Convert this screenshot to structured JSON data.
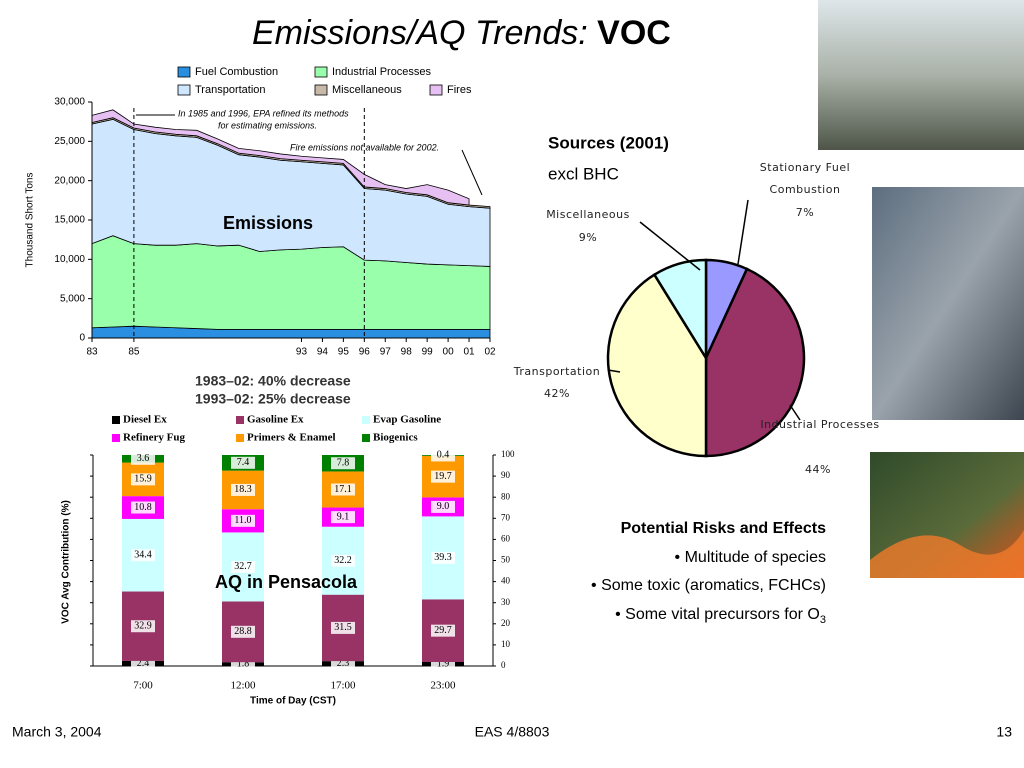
{
  "slide": {
    "title": "Emissions/AQ Trends: ",
    "title_bold": "VOC",
    "risks": {
      "heading": "Potential Risks and Effects",
      "items": [
        "• Multitude of species",
        "• Some toxic (aromatics, FCHCs)",
        "• Some vital precursors for O"
      ],
      "subscript": "3"
    },
    "footer": {
      "date": "March 3, 2004",
      "course": "EAS 4/8803",
      "page": "13"
    }
  },
  "chart_data": [
    {
      "type": "area",
      "stacked": true,
      "ylabel": "Thousand Short Tons",
      "label": "Emissions",
      "annotations": [
        "In 1985 and 1996, EPA refined its methods",
        "for estimating emissions.",
        "Fire emissions not available for 2002."
      ],
      "summary": [
        "1983–02:   40% decrease",
        "1993–02:   25% decrease"
      ],
      "x": [
        1983,
        1984,
        1985,
        1986,
        1987,
        1988,
        1989,
        1990,
        1991,
        1992,
        1993,
        1994,
        1995,
        1996,
        1997,
        1998,
        1999,
        2000,
        2001,
        2002
      ],
      "xlim": [
        1983,
        2002
      ],
      "xticks": [
        {
          "value": 1983,
          "label": "83"
        },
        {
          "value": 1985,
          "label": "85"
        },
        {
          "value": 1993,
          "label": "93"
        },
        {
          "value": 1994,
          "label": "94"
        },
        {
          "value": 1995,
          "label": "95"
        },
        {
          "value": 1996,
          "label": "96"
        },
        {
          "value": 1997,
          "label": "97"
        },
        {
          "value": 1998,
          "label": "98"
        },
        {
          "value": 1999,
          "label": "99"
        },
        {
          "value": 2000,
          "label": "00"
        },
        {
          "value": 2001,
          "label": "01"
        },
        {
          "value": 2002,
          "label": "02"
        }
      ],
      "ylim": [
        0,
        30000
      ],
      "yticks": [
        0,
        {
          "value": 5000,
          "label": "5,000"
        },
        {
          "value": 10000,
          "label": "10,000"
        },
        {
          "value": 15000,
          "label": "15,000"
        },
        {
          "value": 20000,
          "label": "20,000"
        },
        {
          "value": 25000,
          "label": "25,000"
        },
        {
          "value": 30000,
          "label": "30,000"
        }
      ],
      "series": [
        {
          "name": "Fuel Combustion",
          "color": "#2a8fe0",
          "values": [
            1300,
            1400,
            1500,
            1400,
            1300,
            1200,
            1100,
            1100,
            1100,
            1100,
            1100,
            1100,
            1100,
            1100,
            1100,
            1100,
            1100,
            1100,
            1100,
            1100
          ]
        },
        {
          "name": "Industrial Processes",
          "color": "#99ffaa",
          "values": [
            10700,
            11600,
            10500,
            10400,
            10500,
            10800,
            10600,
            10700,
            9900,
            10100,
            10200,
            10400,
            10500,
            8800,
            8700,
            8500,
            8300,
            8200,
            8100,
            8000
          ]
        },
        {
          "name": "Transportation",
          "color": "#cfe6ff",
          "values": [
            15200,
            14800,
            14500,
            14200,
            13900,
            13500,
            12800,
            11500,
            12000,
            11400,
            11100,
            10700,
            10400,
            9100,
            9000,
            8700,
            8600,
            7700,
            7500,
            7400
          ]
        },
        {
          "name": "Miscellaneous",
          "color": "#c8b8a8",
          "values": [
            200,
            200,
            200,
            200,
            200,
            200,
            200,
            200,
            200,
            200,
            200,
            200,
            200,
            200,
            200,
            200,
            200,
            200,
            200,
            200
          ]
        },
        {
          "name": "Fires",
          "color": "#e6c0f2",
          "values": [
            900,
            1000,
            500,
            600,
            600,
            700,
            600,
            600,
            600,
            600,
            500,
            500,
            500,
            1600,
            500,
            500,
            1300,
            1600,
            800,
            null
          ]
        }
      ]
    },
    {
      "type": "pie",
      "title": "Sources (2001)",
      "subtitle": "excl BHC",
      "categories": [
        "Stationary Fuel Combustion",
        "Industrial Processes",
        "Transportation",
        "Miscellaneous"
      ],
      "values": [
        7,
        44,
        42,
        9
      ],
      "value_labels": [
        "7%",
        "44%",
        "42%",
        "9%"
      ],
      "colors": [
        "#9999ff",
        "#993366",
        "#ffffcc",
        "#ccffff"
      ]
    },
    {
      "type": "bar",
      "stacked": true,
      "label": "AQ in Pensacola",
      "xlabel": "Time of Day  (CST)",
      "ylabel": "VOC Avg Contribution (%)",
      "categories": [
        "7:00",
        "12:00",
        "17:00",
        "23:00"
      ],
      "ylim": [
        0,
        100
      ],
      "yticks": [
        0,
        10,
        20,
        30,
        40,
        50,
        60,
        70,
        80,
        90,
        100
      ],
      "series": [
        {
          "name": "Diesel Ex",
          "color": "#000000",
          "values": [
            2.4,
            1.8,
            2.3,
            1.9
          ]
        },
        {
          "name": "Gasoline Ex",
          "color": "#993366",
          "values": [
            32.9,
            28.8,
            31.5,
            29.7
          ]
        },
        {
          "name": "Evap Gasoline",
          "color": "#ccffff",
          "values": [
            34.4,
            32.7,
            32.2,
            39.3
          ]
        },
        {
          "name": "Refinery Fug",
          "color": "#ff00ff",
          "values": [
            10.8,
            11.0,
            9.1,
            9.0
          ],
          "value_labels": [
            "10.8",
            "11.0",
            "9.1",
            "9.0"
          ]
        },
        {
          "name": "Primers & Enamel",
          "color": "#ff9900",
          "values": [
            15.9,
            18.3,
            17.1,
            19.7
          ]
        },
        {
          "name": "Biogenics",
          "color": "#008000",
          "values": [
            3.6,
            7.4,
            7.8,
            0.4
          ]
        }
      ]
    }
  ]
}
